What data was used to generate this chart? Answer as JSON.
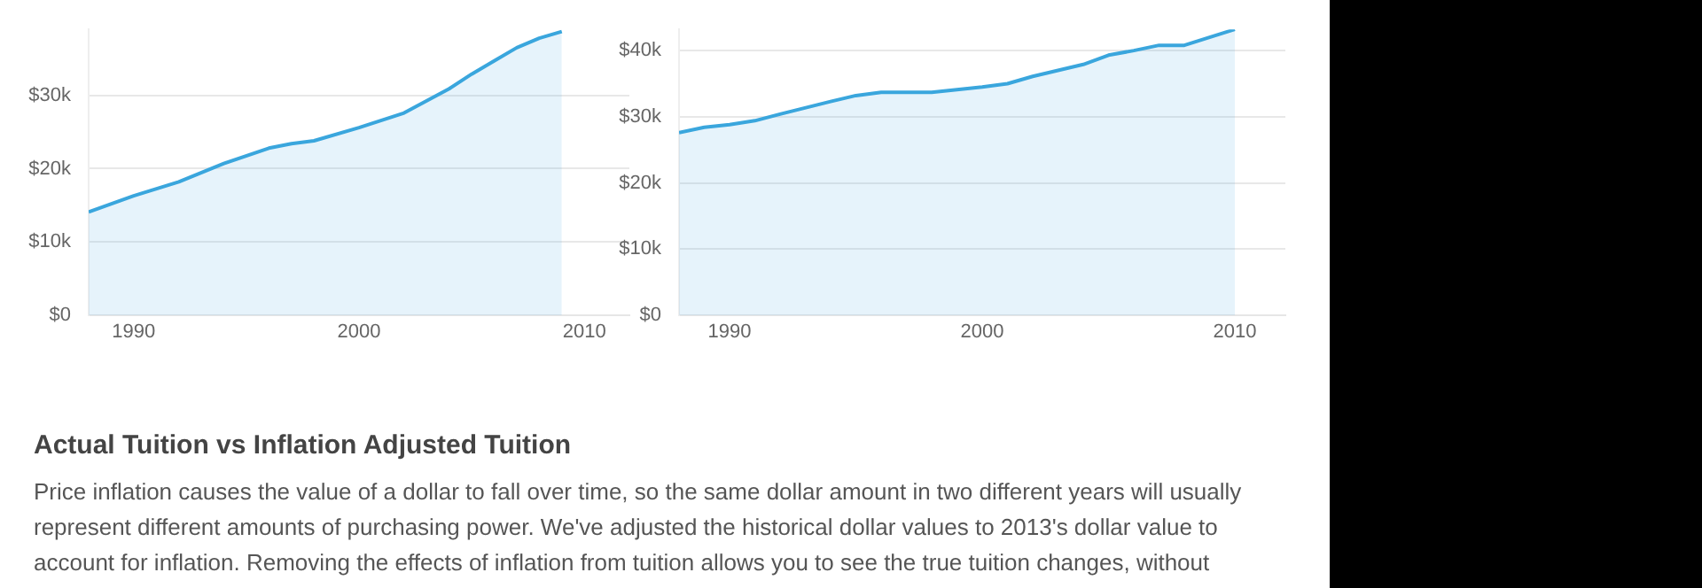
{
  "chart_data": [
    {
      "type": "area",
      "x": [
        1988,
        1990,
        1992,
        1994,
        1996,
        1997,
        1998,
        2000,
        2002,
        2004,
        2005,
        2006,
        2007,
        2008,
        2009
      ],
      "series": [
        {
          "color": "#3aa6dd",
          "values": [
            14100,
            16300,
            18200,
            20700,
            22800,
            23400,
            23800,
            25600,
            27600,
            30900,
            32900,
            34700,
            36500,
            37800,
            38700
          ]
        }
      ],
      "xlim": [
        1988,
        2012
      ],
      "xticks": [
        1990,
        2000,
        2010
      ],
      "ylim": [
        0,
        39000
      ],
      "yticks": [
        {
          "value": 0,
          "label": "$0"
        },
        {
          "value": 10000,
          "label": "$10k"
        },
        {
          "value": 20000,
          "label": "$20k"
        },
        {
          "value": 30000,
          "label": "$30k"
        }
      ],
      "grid": "y",
      "legend": false
    },
    {
      "type": "area",
      "x": [
        1988,
        1989,
        1990,
        1991,
        1992,
        1994,
        1995,
        1996,
        1998,
        2000,
        2001,
        2002,
        2004,
        2005,
        2006,
        2007,
        2008,
        2009,
        2010
      ],
      "series": [
        {
          "color": "#3aa6dd",
          "values": [
            27600,
            28400,
            28800,
            29400,
            30400,
            32300,
            33200,
            33700,
            33700,
            34500,
            35000,
            36100,
            37900,
            39300,
            40000,
            40800,
            40800,
            42000,
            43200
          ]
        }
      ],
      "xlim": [
        1988,
        2012
      ],
      "xticks": [
        1990,
        2000,
        2010
      ],
      "ylim": [
        0,
        43200
      ],
      "yticks": [
        {
          "value": 0,
          "label": "$0"
        },
        {
          "value": 10000,
          "label": "$10k"
        },
        {
          "value": 20000,
          "label": "$20k"
        },
        {
          "value": 30000,
          "label": "$30k"
        },
        {
          "value": 40000,
          "label": "$40k"
        }
      ],
      "grid": "y",
      "legend": false
    },
    {
      "type": "other",
      "title": "Actual Tuition vs Inflation Adjusted Tuition",
      "annotations": [
        "Price inflation causes the value of a dollar to fall over time, so the same dollar amount in two different years will usually represent different amounts of purchasing power. We've adjusted the historical dollar values to 2013's dollar value to account for inflation. Removing the effects of inflation from tuition allows you to see the true tuition changes, without"
      ]
    }
  ]
}
